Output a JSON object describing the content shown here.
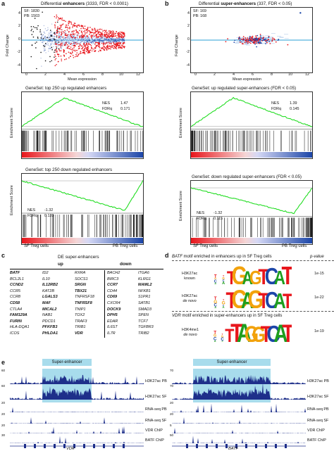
{
  "panel_a": {
    "label": "a",
    "title_prefix": "Differential ",
    "title_bold": "enhancers",
    "title_suffix": " (3333, FDR < 0.0001)",
    "legend_sf": "SF: 1830",
    "legend_pb": "PB: 1503",
    "ylabel": "Fold Change",
    "xlabel": "Mean expression",
    "yticks": [
      "4",
      "2",
      "0",
      "-2",
      "-4"
    ],
    "xticks": [
      "0",
      "2",
      "4",
      "6",
      "8",
      "10",
      "12"
    ],
    "gsea_up": {
      "title": "GeneSet: top 250 up regulated enhancers",
      "nes_label": "NES",
      "nes": "1.47",
      "fdr_label": "FDRq",
      "fdr": "0.171",
      "ylabel": "Enrichment Score"
    },
    "gsea_down": {
      "title": "GeneSet: top 250 down regulated enhancers",
      "nes_label": "NES",
      "nes": "-1.32",
      "fdr_label": "FDRq",
      "fdr": "0.120",
      "ylabel": "Enrichment Score",
      "left": "SF Treg cells",
      "right": "PB Treg cells"
    },
    "gsea_up_bar_left": "SF Treg cells",
    "gsea_up_bar_right": "PB Treg cells"
  },
  "panel_b": {
    "label": "b",
    "title_prefix": "Differential ",
    "title_bold": "super-enhancers",
    "title_suffix": " (337, FDR < 0.05)",
    "legend_sf": "SF: 169",
    "legend_pb": "PB: 168",
    "ylabel": "Fold Change",
    "xlabel": "Mean expression",
    "yticks": [
      "4",
      "2",
      "0",
      "-2",
      "-4"
    ],
    "xticks": [
      "0",
      "2",
      "4",
      "6",
      "8",
      "10",
      "12"
    ],
    "gsea_up": {
      "title": "GeneSet: up regulated super-enhancers (FDR < 0.05)",
      "nes_label": "NES",
      "nes": "1.39",
      "fdr_label": "FDRq",
      "fdr": "0.145",
      "ylabel": "Enrichment Score"
    },
    "gsea_down": {
      "title": "GeneSet: down regulated super-enhancers (FDR < 0.05)",
      "nes_label": "NES",
      "nes": "-1.32",
      "fdr_label": "FDRq",
      "fdr": "0.115",
      "ylabel": "Enrichment Score",
      "left": "SF Treg cells",
      "right": "PB Treg cells"
    },
    "gsea_up_bar_left": "SF Treg cells",
    "gsea_up_bar_right": "PB Treg cells"
  },
  "panel_c": {
    "label": "c",
    "title": "DE super-enhancers",
    "up": "up",
    "down": "down",
    "columns": [
      [
        {
          "t": "BATF",
          "b": true
        },
        {
          "t": "BCL2L1",
          "b": false
        },
        {
          "t": "CCND2",
          "b": true
        },
        {
          "t": "CCR5",
          "b": false
        },
        {
          "t": "CCR8",
          "b": false
        },
        {
          "t": "CD58",
          "b": true
        },
        {
          "t": "CTLA4",
          "b": false
        },
        {
          "t": "FAM129A",
          "b": true
        },
        {
          "t": "FURIN",
          "b": true
        },
        {
          "t": "HLA-DQA1",
          "b": false
        },
        {
          "t": "ICOS",
          "b": false
        }
      ],
      [
        {
          "t": "ID2",
          "b": false
        },
        {
          "t": "IL10",
          "b": false
        },
        {
          "t": "IL12RB2",
          "b": true
        },
        {
          "t": "KAT2B",
          "b": false
        },
        {
          "t": "LGALS3",
          "b": true
        },
        {
          "t": "MAF",
          "b": true
        },
        {
          "t": "MICAL2",
          "b": true
        },
        {
          "t": "NAB1",
          "b": false
        },
        {
          "t": "PDCD1",
          "b": false
        },
        {
          "t": "PFKFB3",
          "b": true
        },
        {
          "t": "PHLDA1",
          "b": true
        }
      ],
      [
        {
          "t": "RXRA",
          "b": false
        },
        {
          "t": "SOCS1",
          "b": false
        },
        {
          "t": "SRGN",
          "b": true
        },
        {
          "t": "TBX21",
          "b": true
        },
        {
          "t": "TNFRSF18",
          "b": false
        },
        {
          "t": "TNFRSF8",
          "b": true
        },
        {
          "t": "TNIP1",
          "b": false
        },
        {
          "t": "TOX2",
          "b": false
        },
        {
          "t": "TRAF3",
          "b": false
        },
        {
          "t": "TRIB1",
          "b": false
        },
        {
          "t": "VDR",
          "b": true
        }
      ],
      [
        {
          "t": "BACH2",
          "b": false
        },
        {
          "t": "BIRC3",
          "b": false
        },
        {
          "t": "CCR7",
          "b": true
        },
        {
          "t": "CD44",
          "b": false
        },
        {
          "t": "CD69",
          "b": true
        },
        {
          "t": "CXCR4",
          "b": false
        },
        {
          "t": "DOCK9",
          "b": true
        },
        {
          "t": "DPH5",
          "b": true
        },
        {
          "t": "EDAR",
          "b": false
        },
        {
          "t": "IL6ST",
          "b": false
        },
        {
          "t": "IL7R",
          "b": false
        }
      ],
      [
        {
          "t": "ITGA6",
          "b": false
        },
        {
          "t": "KLRG1",
          "b": false
        },
        {
          "t": "MAML2",
          "b": true
        },
        {
          "t": "NFKB1",
          "b": false
        },
        {
          "t": "S1PR1",
          "b": false
        },
        {
          "t": "SATB1",
          "b": false
        },
        {
          "t": "SMAD3",
          "b": false
        },
        {
          "t": "SPEN",
          "b": false
        },
        {
          "t": "TCF7",
          "b": false
        },
        {
          "t": "TGFBR3",
          "b": false
        },
        {
          "t": "TRIB2",
          "b": false
        }
      ]
    ]
  },
  "panel_d": {
    "label": "d",
    "batf_title_italic": "BATF",
    "batf_title_rest": " motif enriched in enhancers up in SF Treg cells",
    "vdr_title_italic": "VDR",
    "vdr_title_rest": " motif enriched in super-enhancers up in SF Treg cells",
    "pvalue_header": "p-value",
    "rows": [
      {
        "mark": "H3K27ac",
        "kind": "known",
        "seq": "TGAGTCAT",
        "pval": "1e-15"
      },
      {
        "mark": "H3K27ac",
        "kind": "de novo",
        "seq": "TGAGTCAT",
        "pval": "1e-22"
      },
      {
        "mark": "H3K4me1",
        "kind": "de novo",
        "seq": "TTAGGTCAT",
        "pval": "1e-19"
      }
    ]
  },
  "panel_e": {
    "label": "e",
    "super_enhancer": "Super-enhancer",
    "left": {
      "gene": "VDR",
      "scales": [
        "60",
        "60",
        "20",
        "20",
        "20",
        "30"
      ],
      "zeros": [
        "0",
        "0",
        "0",
        "0",
        "0",
        "0"
      ]
    },
    "right": {
      "gene": "BATF",
      "scales": [
        "70",
        "70",
        "20",
        "20",
        "5",
        "50"
      ],
      "zeros": [
        "0",
        "0",
        "0",
        "0",
        "0",
        "0"
      ]
    },
    "tracks": [
      "H3K27ac PB",
      "H3K27ac SF",
      "RNA-seq PB",
      "RNA-seq SF",
      "VDR ChIP",
      "BATF ChIP"
    ]
  },
  "colors": {
    "red": "#e8161c",
    "blue": "#1c46a8",
    "green": "#22dd22",
    "light_blue": "#a8dcec",
    "track_blue": "#1e2f8a"
  }
}
